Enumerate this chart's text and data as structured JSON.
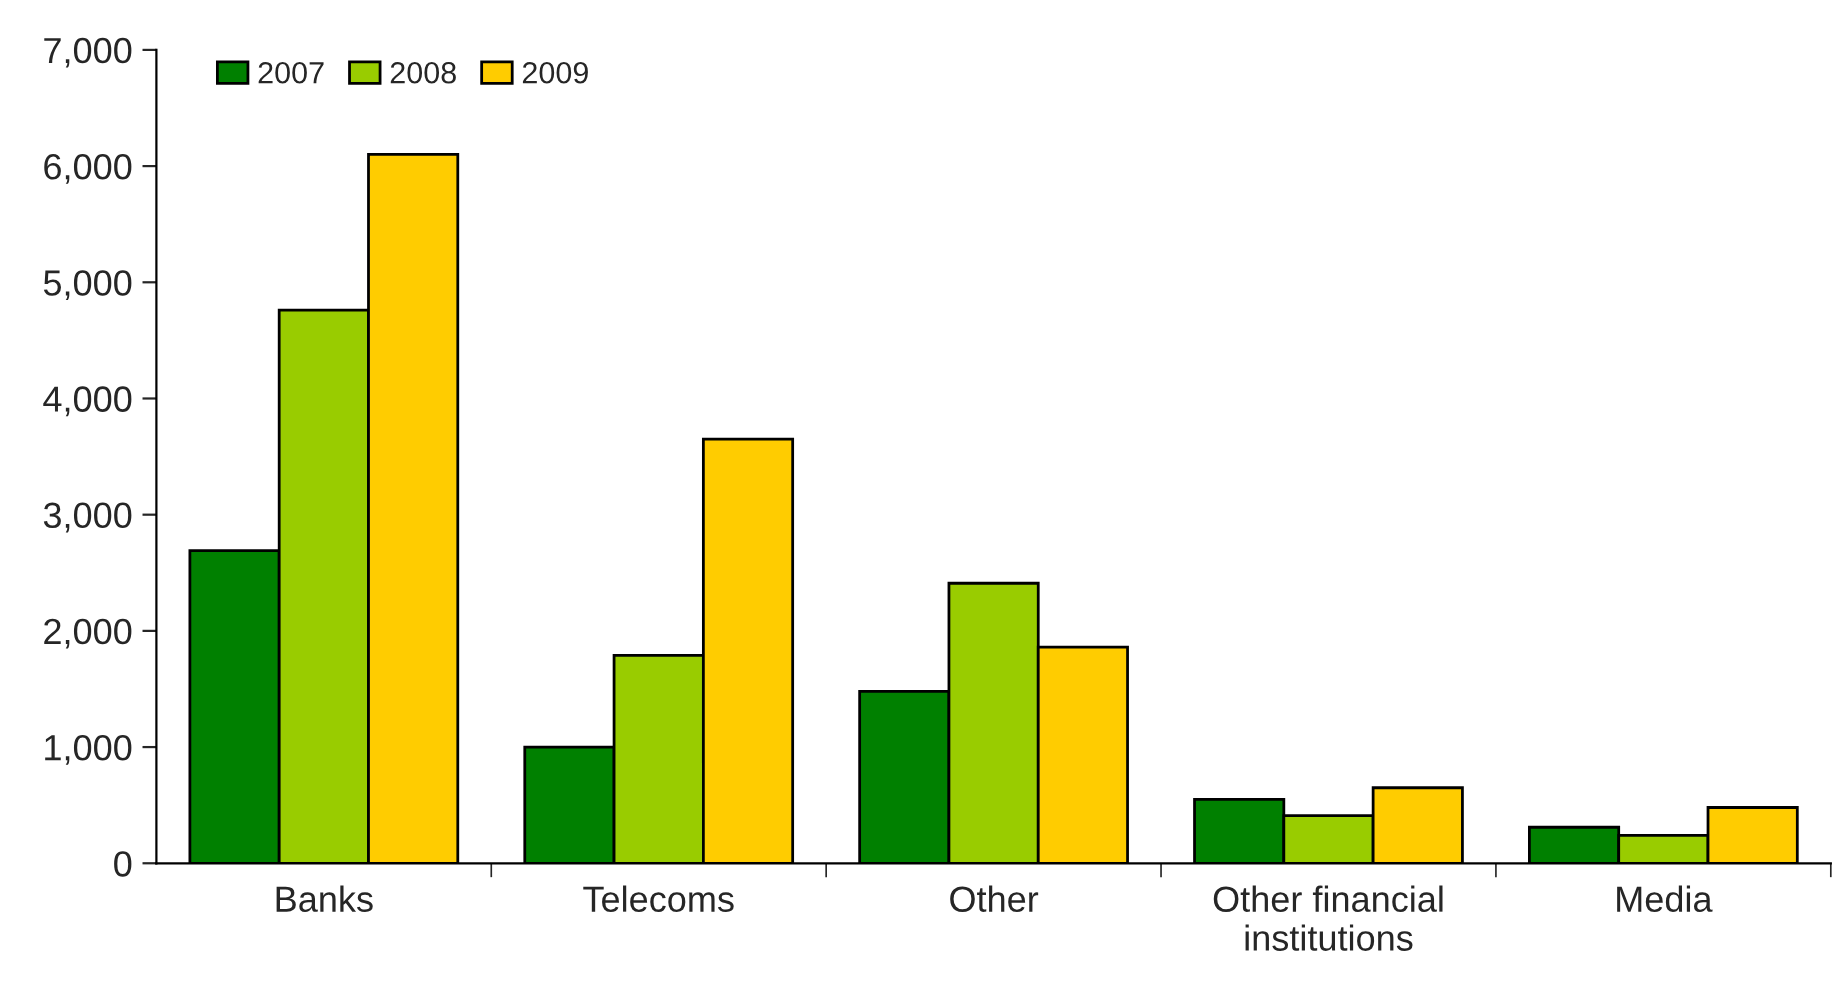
{
  "chart_data": {
    "type": "bar",
    "categories": [
      "Banks",
      "Telecoms",
      "Other",
      "Other financial\ninstitutions",
      "Media"
    ],
    "series": [
      {
        "name": "2007",
        "color": "#008000",
        "values": [
          2690,
          1000,
          1480,
          550,
          310
        ]
      },
      {
        "name": "2008",
        "color": "#99cc00",
        "values": [
          4760,
          1790,
          2410,
          410,
          240
        ]
      },
      {
        "name": "2009",
        "color": "#ffcc00",
        "values": [
          6100,
          3650,
          1860,
          650,
          480
        ]
      }
    ],
    "ylim": [
      0,
      7000
    ],
    "yticks": [
      {
        "value": 0,
        "label": "0"
      },
      {
        "value": 1000,
        "label": "1,000"
      },
      {
        "value": 2000,
        "label": "2,000"
      },
      {
        "value": 3000,
        "label": "3,000"
      },
      {
        "value": 4000,
        "label": "4,000"
      },
      {
        "value": 5000,
        "label": "5,000"
      },
      {
        "value": 6000,
        "label": "6,000"
      },
      {
        "value": 7000,
        "label": "7,000"
      }
    ],
    "grid": false,
    "legend": "top left"
  }
}
